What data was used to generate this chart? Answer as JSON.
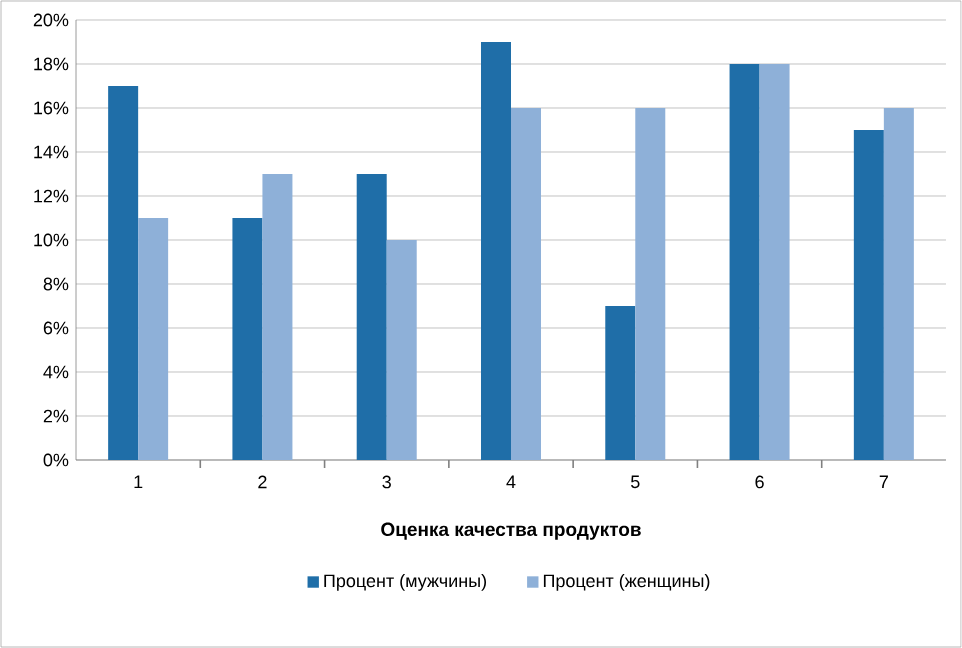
{
  "chart_data": {
    "type": "bar",
    "xlabel": "Оценка качества продуктов",
    "categories": [
      "1",
      "2",
      "3",
      "4",
      "5",
      "6",
      "7"
    ],
    "series": [
      {
        "name": "Процент (мужчины)",
        "color": "#1f6ea8",
        "values": [
          17,
          11,
          13,
          19,
          7,
          18,
          15
        ]
      },
      {
        "name": "Процент (женщины)",
        "color": "#8eb0d8",
        "values": [
          11,
          13,
          10,
          16,
          16,
          18,
          16
        ]
      }
    ],
    "ylim": [
      0,
      20
    ],
    "yticks": [
      {
        "value": 0,
        "label": "0%"
      },
      {
        "value": 2,
        "label": "2%"
      },
      {
        "value": 4,
        "label": "4%"
      },
      {
        "value": 6,
        "label": "6%"
      },
      {
        "value": 8,
        "label": "8%"
      },
      {
        "value": 10,
        "label": "10%"
      },
      {
        "value": 12,
        "label": "12%"
      },
      {
        "value": 14,
        "label": "14%"
      },
      {
        "value": 16,
        "label": "16%"
      },
      {
        "value": 18,
        "label": "18%"
      },
      {
        "value": 20,
        "label": "20%"
      }
    ],
    "grid": "y",
    "legend": "bottom"
  }
}
